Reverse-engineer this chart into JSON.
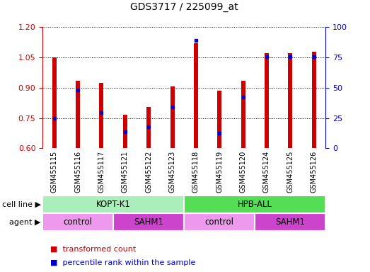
{
  "title": "GDS3717 / 225099_at",
  "samples": [
    "GSM455115",
    "GSM455116",
    "GSM455117",
    "GSM455121",
    "GSM455122",
    "GSM455123",
    "GSM455118",
    "GSM455119",
    "GSM455120",
    "GSM455124",
    "GSM455125",
    "GSM455126"
  ],
  "red_values": [
    1.05,
    0.935,
    0.925,
    0.765,
    0.805,
    0.905,
    1.12,
    0.885,
    0.935,
    1.07,
    1.07,
    1.08
  ],
  "blue_values": [
    0.75,
    0.89,
    0.775,
    0.68,
    0.705,
    0.805,
    1.135,
    0.675,
    0.855,
    1.055,
    1.055,
    1.055
  ],
  "ylim_left": [
    0.6,
    1.2
  ],
  "ylim_right": [
    0,
    100
  ],
  "yticks_left": [
    0.6,
    0.75,
    0.9,
    1.05,
    1.2
  ],
  "yticks_right": [
    0,
    25,
    50,
    75,
    100
  ],
  "bar_color": "#cc0000",
  "dot_color": "#0000cc",
  "bar_width": 0.18,
  "cell_line_groups": [
    {
      "label": "KOPT-K1",
      "start": 0,
      "end": 6,
      "color": "#aaeebb"
    },
    {
      "label": "HPB-ALL",
      "start": 6,
      "end": 12,
      "color": "#55dd55"
    }
  ],
  "agent_groups": [
    {
      "label": "control",
      "start": 0,
      "end": 3,
      "color": "#ee99ee"
    },
    {
      "label": "SAHM1",
      "start": 3,
      "end": 6,
      "color": "#cc44cc"
    },
    {
      "label": "control",
      "start": 6,
      "end": 9,
      "color": "#ee99ee"
    },
    {
      "label": "SAHM1",
      "start": 9,
      "end": 12,
      "color": "#cc44cc"
    }
  ],
  "bg_color": "#ffffff",
  "xtick_bg_color": "#cccccc",
  "cell_line_label": "cell line",
  "agent_label": "agent",
  "bar_color_label": "transformed count",
  "dot_color_label": "percentile rank within the sample"
}
